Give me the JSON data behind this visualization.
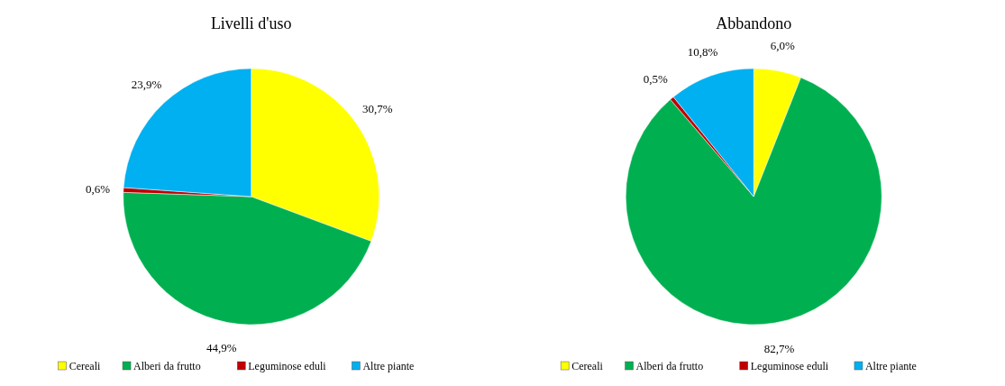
{
  "chart_data": [
    {
      "type": "pie",
      "title": "Livelli d'uso",
      "categories": [
        "Cereali",
        "Alberi da frutto",
        "Leguminose eduli",
        "Altre piante"
      ],
      "values": [
        30.7,
        44.9,
        0.6,
        23.9
      ],
      "value_labels": [
        "30,7%",
        "44,9%",
        "0,6%",
        "23,9%"
      ],
      "colors": [
        "#ffff00",
        "#00b050",
        "#c00000",
        "#00b0f0"
      ],
      "legend": "bottom"
    },
    {
      "type": "pie",
      "title": "Abbandono",
      "categories": [
        "Cereali",
        "Alberi da frutto",
        "Leguminose eduli",
        "Altre piante"
      ],
      "values": [
        6.0,
        82.7,
        0.5,
        10.8
      ],
      "value_labels": [
        "6,0%",
        "82,7%",
        "0,5%",
        "10,8%"
      ],
      "colors": [
        "#ffff00",
        "#00b050",
        "#c00000",
        "#00b0f0"
      ],
      "legend": "bottom"
    }
  ]
}
